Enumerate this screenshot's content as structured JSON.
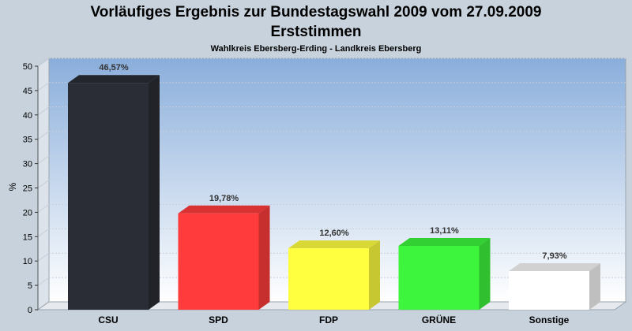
{
  "chart_data": {
    "type": "bar",
    "title_line1": "Vorläufiges Ergebnis zur Bundestagswahl 2009 vom 27.09.2009",
    "title_line2": "Erststimmen",
    "subtitle": "Wahlkreis Ebersberg-Erding - Landkreis Ebersberg",
    "ylabel": "%",
    "ylim": [
      0,
      50
    ],
    "yticks": [
      0,
      5,
      10,
      15,
      20,
      25,
      30,
      35,
      40,
      45,
      50
    ],
    "grid": true,
    "categories": [
      "CSU",
      "SPD",
      "FDP",
      "GRÜNE",
      "Sonstige"
    ],
    "values": [
      46.57,
      19.78,
      12.6,
      13.11,
      7.93
    ],
    "value_labels": [
      "46,57%",
      "19,78%",
      "12,60%",
      "13,11%",
      "7,93%"
    ],
    "colors": [
      "#2a2d35",
      "#ff3b3b",
      "#ffff40",
      "#3cf53c",
      "#ffffff"
    ]
  }
}
